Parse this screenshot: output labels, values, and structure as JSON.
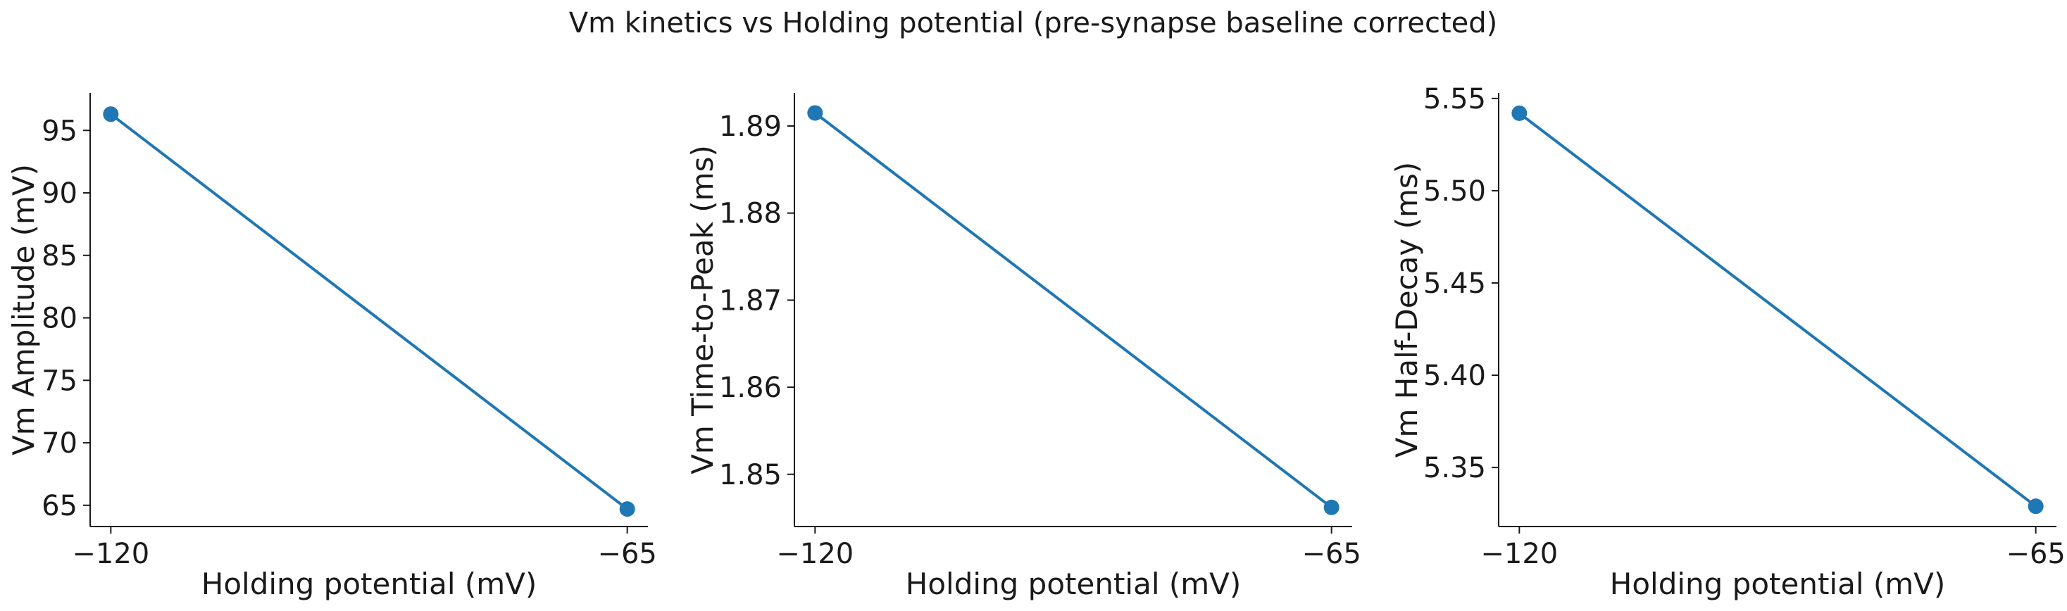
{
  "title": "Vm kinetics vs Holding potential (pre-synapse baseline corrected)",
  "colors": {
    "line": "#1f77b4",
    "marker": "#1f77b4",
    "axes": "#1a1a1a"
  },
  "chart_data": [
    {
      "type": "line",
      "xlabel": "Holding potential (mV)",
      "ylabel": "Vm Amplitude (mV)",
      "x": [
        -120,
        -65
      ],
      "xticks": [
        -120,
        -65
      ],
      "xtick_labels": [
        "−120",
        "−65"
      ],
      "series": [
        {
          "values": [
            96.3,
            64.7
          ]
        }
      ],
      "ylim": [
        63.3,
        98.0
      ],
      "yticks": [
        65,
        70,
        75,
        80,
        85,
        90,
        95
      ],
      "ytick_labels": [
        "65",
        "70",
        "75",
        "80",
        "85",
        "90",
        "95"
      ],
      "grid": false,
      "legend": "none"
    },
    {
      "type": "line",
      "xlabel": "Holding potential (mV)",
      "ylabel": "Vm Time-to-Peak (ms)",
      "x": [
        -120,
        -65
      ],
      "xticks": [
        -120,
        -65
      ],
      "xtick_labels": [
        "−120",
        "−65"
      ],
      "series": [
        {
          "values": [
            1.8915,
            1.8462
          ]
        }
      ],
      "ylim": [
        1.844,
        1.8938
      ],
      "yticks": [
        1.85,
        1.86,
        1.87,
        1.88,
        1.89
      ],
      "ytick_labels": [
        "1.85",
        "1.86",
        "1.87",
        "1.88",
        "1.89"
      ],
      "grid": false,
      "legend": "none"
    },
    {
      "type": "line",
      "xlabel": "Holding potential (mV)",
      "ylabel": "Vm Half-Decay (ms)",
      "x": [
        -120,
        -65
      ],
      "xticks": [
        -120,
        -65
      ],
      "xtick_labels": [
        "−120",
        "−65"
      ],
      "series": [
        {
          "values": [
            5.542,
            5.329
          ]
        }
      ],
      "ylim": [
        5.318,
        5.553
      ],
      "yticks": [
        5.35,
        5.4,
        5.45,
        5.5,
        5.55
      ],
      "ytick_labels": [
        "5.35",
        "5.40",
        "5.45",
        "5.50",
        "5.55"
      ],
      "grid": false,
      "legend": "none"
    }
  ]
}
